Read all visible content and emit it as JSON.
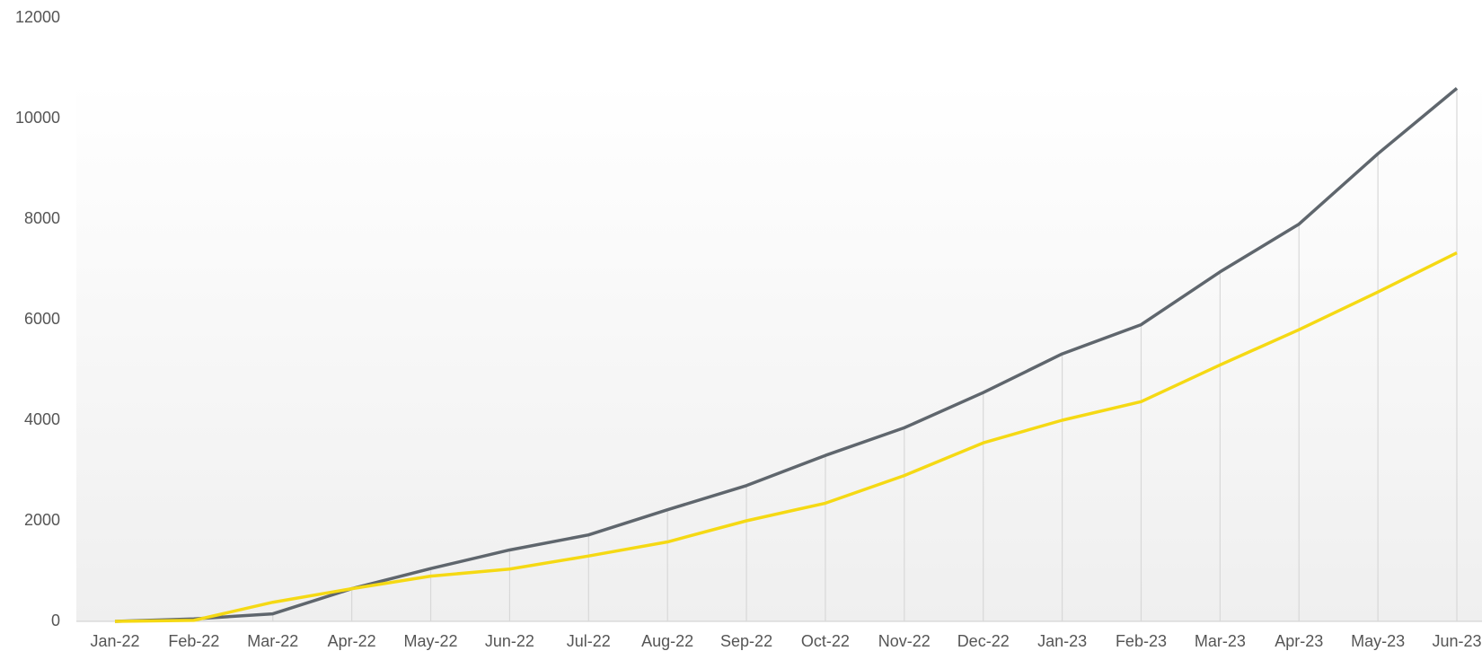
{
  "chart_data": {
    "type": "line",
    "categories": [
      "Jan-22",
      "Feb-22",
      "Mar-22",
      "Apr-22",
      "May-22",
      "Jun-22",
      "Jul-22",
      "Aug-22",
      "Sep-22",
      "Oct-22",
      "Nov-22",
      "Dec-22",
      "Jan-23",
      "Feb-23",
      "Mar-23",
      "Apr-23",
      "May-23",
      "Jun-23"
    ],
    "series": [
      {
        "color": "#5f666d",
        "values": [
          0,
          50,
          150,
          650,
          1050,
          1420,
          1720,
          2220,
          2700,
          3300,
          3850,
          4550,
          5320,
          5900,
          6950,
          7900,
          9300,
          10600
        ]
      },
      {
        "color": "#f5d914",
        "values": [
          0,
          20,
          380,
          650,
          900,
          1040,
          1300,
          1580,
          2000,
          2350,
          2900,
          3550,
          4000,
          4370,
          5100,
          5800,
          6550,
          7330
        ]
      }
    ],
    "ylim": [
      0,
      12000
    ],
    "yticks": [
      0,
      2000,
      4000,
      6000,
      8000,
      10000,
      12000
    ],
    "drop_lines": true
  }
}
